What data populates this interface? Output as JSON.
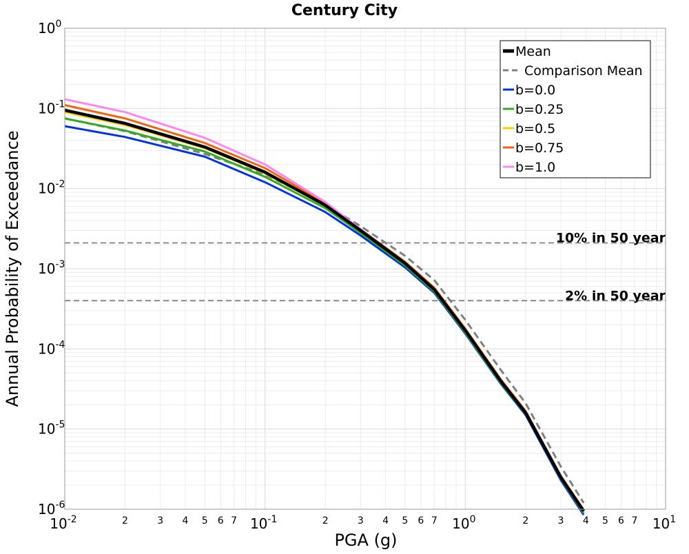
{
  "chart_data": {
    "type": "line",
    "title": "Century City",
    "xlabel": "PGA (g)",
    "ylabel": "Annual Probability of Exceedance",
    "x_scale": "log",
    "y_scale": "log",
    "xlim": [
      0.01,
      10
    ],
    "ylim": [
      1e-06,
      1
    ],
    "grid": true,
    "legend_position": "top-right",
    "x_major_ticks": [
      {
        "base": "10",
        "exp": "-2"
      },
      {
        "base": "10",
        "exp": "-1"
      },
      {
        "base": "10",
        "exp": "0"
      },
      {
        "base": "10",
        "exp": "1"
      }
    ],
    "y_major_ticks": [
      {
        "base": "10",
        "exp": "0"
      },
      {
        "base": "10",
        "exp": "-1"
      },
      {
        "base": "10",
        "exp": "-2"
      },
      {
        "base": "10",
        "exp": "-3"
      },
      {
        "base": "10",
        "exp": "-4"
      },
      {
        "base": "10",
        "exp": "-5"
      },
      {
        "base": "10",
        "exp": "-6"
      }
    ],
    "x_minor_tick_labels": [
      "2",
      "3",
      "4",
      "5",
      "6",
      "7"
    ],
    "reference_lines": [
      {
        "label": "10% in 50 year",
        "y": 0.0021
      },
      {
        "label": "2% in 50 year",
        "y": 0.0004
      }
    ],
    "series": [
      {
        "name": "Mean",
        "color": "#000000",
        "dash": "solid",
        "x": [
          0.01,
          0.02,
          0.05,
          0.1,
          0.2,
          0.3,
          0.5,
          0.7,
          1.0,
          1.5,
          2.0,
          3.0,
          3.9
        ],
        "y": [
          0.095,
          0.065,
          0.033,
          0.016,
          0.0062,
          0.003,
          0.00117,
          0.00055,
          0.00017,
          4e-05,
          1.6e-05,
          2.5e-06,
          9.5e-07
        ]
      },
      {
        "name": "Comparison Mean",
        "color": "#808080",
        "dash": "dashed",
        "x": [
          0.01,
          0.02,
          0.05,
          0.1,
          0.2,
          0.3,
          0.5,
          0.7,
          1.0,
          1.5,
          2.0,
          3.0,
          3.9
        ],
        "y": [
          0.075,
          0.052,
          0.027,
          0.015,
          0.0063,
          0.0034,
          0.00145,
          0.00072,
          0.00023,
          5.5e-05,
          2.1e-05,
          3.4e-06,
          1.2e-06
        ]
      },
      {
        "name": "b=0.0",
        "color": "#0033dd",
        "dash": "solid",
        "x": [
          0.01,
          0.02,
          0.05,
          0.1,
          0.2,
          0.3,
          0.5,
          0.7,
          1.0,
          1.5,
          2.0,
          3.0,
          3.9
        ],
        "y": [
          0.06,
          0.044,
          0.025,
          0.012,
          0.0051,
          0.0026,
          0.00104,
          0.0005,
          0.000155,
          3.7e-05,
          1.5e-05,
          2.3e-06,
          8.5e-07
        ]
      },
      {
        "name": "b=0.25",
        "color": "#33aa22",
        "dash": "solid",
        "x": [
          0.01,
          0.02,
          0.05,
          0.1,
          0.2,
          0.3,
          0.5,
          0.7,
          1.0,
          1.5,
          2.0,
          3.0,
          3.9
        ],
        "y": [
          0.075,
          0.053,
          0.029,
          0.014,
          0.0057,
          0.0028,
          0.0011,
          0.00052,
          0.00016,
          3.8e-05,
          1.55e-05,
          2.4e-06,
          9e-07
        ]
      },
      {
        "name": "b=0.5",
        "color": "#ffcc00",
        "dash": "solid",
        "x": [
          0.01,
          0.02,
          0.05,
          0.1,
          0.2,
          0.3,
          0.5,
          0.7,
          1.0,
          1.5,
          2.0,
          3.0,
          3.9
        ],
        "y": [
          0.09,
          0.062,
          0.032,
          0.0155,
          0.0061,
          0.003,
          0.00116,
          0.00055,
          0.00017,
          4e-05,
          1.6e-05,
          2.5e-06,
          9.5e-07
        ]
      },
      {
        "name": "b=0.75",
        "color": "#ee6611",
        "dash": "solid",
        "x": [
          0.01,
          0.02,
          0.05,
          0.1,
          0.2,
          0.3,
          0.5,
          0.7,
          1.0,
          1.5,
          2.0,
          3.0,
          3.9
        ],
        "y": [
          0.11,
          0.075,
          0.037,
          0.018,
          0.0066,
          0.0031,
          0.00122,
          0.00058,
          0.000178,
          4.2e-05,
          1.68e-05,
          2.6e-06,
          9.8e-07
        ]
      },
      {
        "name": "b=1.0",
        "color": "#ff88ee",
        "dash": "solid",
        "x": [
          0.01,
          0.02,
          0.05,
          0.1,
          0.2,
          0.3,
          0.5,
          0.7,
          1.0,
          1.5,
          2.0,
          3.0,
          3.9
        ],
        "y": [
          0.13,
          0.09,
          0.043,
          0.02,
          0.0068,
          0.0031,
          0.00118,
          0.00056,
          0.000172,
          4e-05,
          1.6e-05,
          2.5e-06,
          9.5e-07
        ]
      }
    ]
  }
}
